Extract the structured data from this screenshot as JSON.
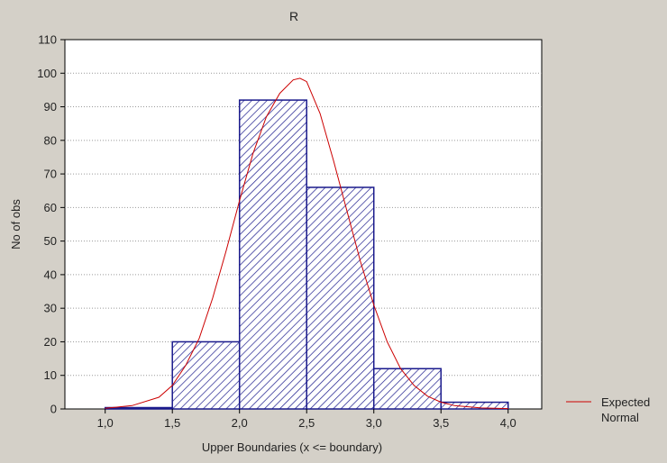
{
  "chart_data": {
    "type": "bar",
    "title": "R",
    "xlabel": "Upper Boundaries (x <= boundary)",
    "ylabel": "No of obs",
    "xlim": [
      0.7,
      4.25
    ],
    "ylim": [
      0,
      110
    ],
    "x_ticks": [
      1.0,
      1.5,
      2.0,
      2.5,
      3.0,
      3.5,
      4.0
    ],
    "x_tick_labels": [
      "1,0",
      "1,5",
      "2,0",
      "2,5",
      "3,0",
      "3,5",
      "4,0"
    ],
    "y_ticks": [
      0,
      10,
      20,
      30,
      40,
      50,
      60,
      70,
      80,
      90,
      100,
      110
    ],
    "grid": "horizontal dotted",
    "bins": [
      {
        "from": 1.0,
        "to": 1.5,
        "value": 0
      },
      {
        "from": 1.5,
        "to": 2.0,
        "value": 20
      },
      {
        "from": 2.0,
        "to": 2.5,
        "value": 92
      },
      {
        "from": 2.5,
        "to": 3.0,
        "value": 66
      },
      {
        "from": 3.0,
        "to": 3.5,
        "value": 12
      },
      {
        "from": 3.5,
        "to": 4.0,
        "value": 2
      }
    ],
    "series": [
      {
        "name": "Expected Normal",
        "type": "line",
        "color": "#cc0000",
        "x": [
          1.0,
          1.2,
          1.4,
          1.5,
          1.6,
          1.7,
          1.8,
          1.9,
          2.0,
          2.1,
          2.2,
          2.3,
          2.4,
          2.45,
          2.5,
          2.6,
          2.7,
          2.8,
          2.9,
          3.0,
          3.1,
          3.2,
          3.3,
          3.4,
          3.5,
          3.6,
          3.8,
          4.0
        ],
        "y": [
          0.2,
          1.0,
          3.5,
          7,
          13,
          21,
          33,
          47,
          62,
          76,
          87,
          94,
          98,
          98.5,
          97.5,
          88,
          74,
          59,
          44,
          31,
          20,
          12,
          7,
          3.8,
          2,
          1,
          0.3,
          0.1
        ]
      }
    ],
    "bar_color": "#1a1a8c",
    "legend": {
      "position": "right",
      "line1": "Expected",
      "line2": "Normal"
    }
  }
}
